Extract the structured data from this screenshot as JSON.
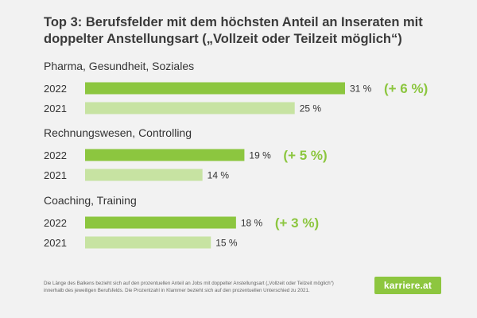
{
  "title": {
    "line1": "Top 3: Berufsfelder mit dem höchsten Anteil an Inseraten mit",
    "line2": "doppelter Anstellungsart („Vollzeit oder Teilzeit möglich“)"
  },
  "colors": {
    "bar_2022": "#8cc63f",
    "bar_2021": "#c7e3a2",
    "delta": "#8cc63f",
    "text": "#333333",
    "logo_bg": "#8dc63f"
  },
  "chart_data": {
    "type": "bar",
    "orientation": "horizontal",
    "title": "Top 3: Berufsfelder mit dem höchsten Anteil an Inseraten mit doppelter Anstellungsart („Vollzeit oder Teilzeit möglich“)",
    "value_suffix": " %",
    "xlim": [
      0,
      31
    ],
    "groups": [
      {
        "category": "Pharma, Gesundheit, Soziales",
        "delta": "(+ 6 %)",
        "bars": [
          {
            "year": "2022",
            "value": 31
          },
          {
            "year": "2021",
            "value": 25
          }
        ]
      },
      {
        "category": "Rechnungswesen, Controlling",
        "delta": "(+ 5 %)",
        "bars": [
          {
            "year": "2022",
            "value": 19
          },
          {
            "year": "2021",
            "value": 14
          }
        ]
      },
      {
        "category": "Coaching, Training",
        "delta": "(+ 3 %)",
        "bars": [
          {
            "year": "2022",
            "value": 18
          },
          {
            "year": "2021",
            "value": 15
          }
        ]
      }
    ]
  },
  "footnote": {
    "line1": "Die Länge des Balkens bezieht sich auf den prozentuellen Anteil an Jobs mit doppelter Anstellungsart („Vollzeit oder Teilzeit möglich“)",
    "line2": "innerhalb des jeweiligen Berufsfelds. Die Prozentzahl in Klammer bezieht sich auf den prozentuellen Unterschied zu 2021."
  },
  "logo": {
    "text": "karriere.at"
  }
}
